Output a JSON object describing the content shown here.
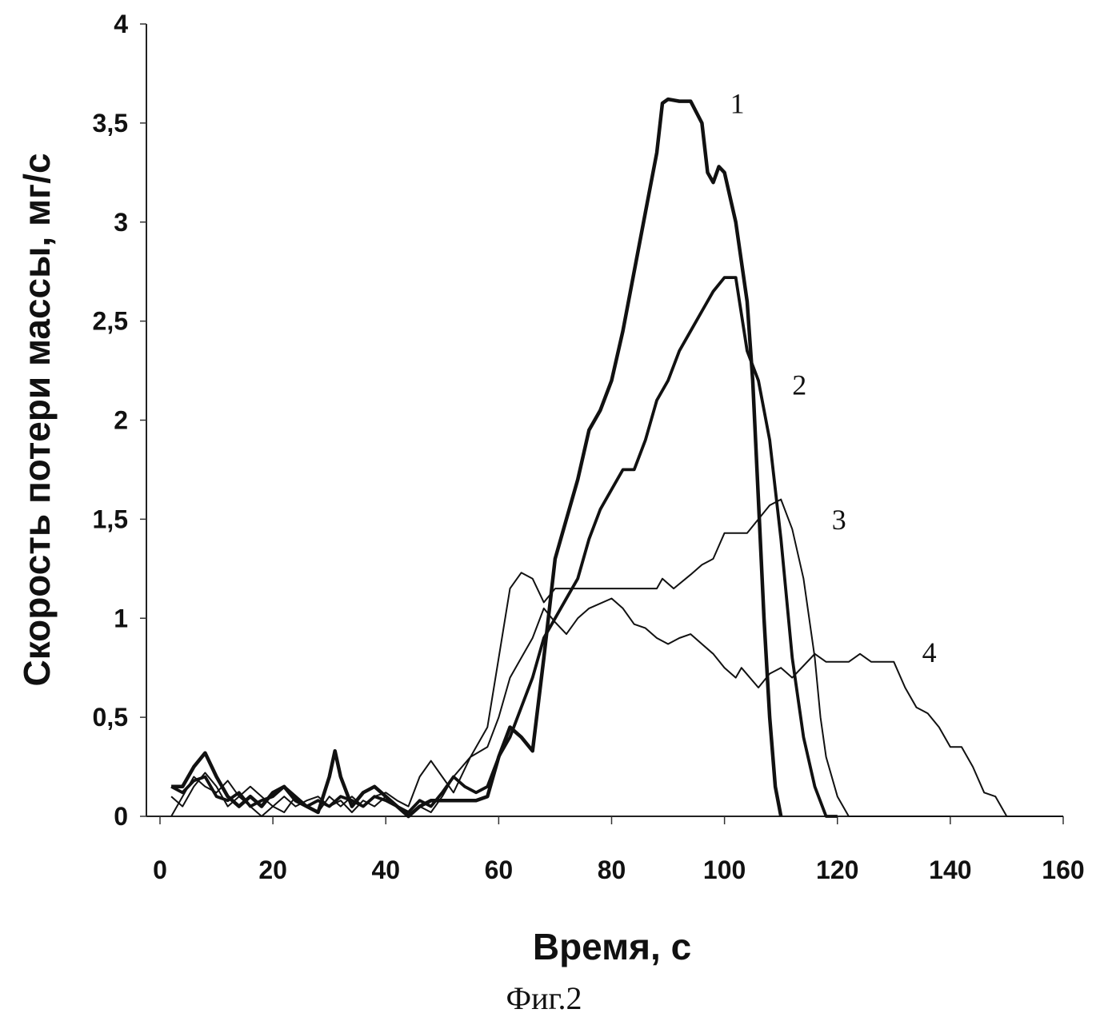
{
  "chart_data": {
    "type": "line",
    "title": "",
    "caption": "Фиг.2",
    "xlabel": "Время, с",
    "ylabel": "Скорость потери массы, мг/с",
    "xlim": [
      0,
      160
    ],
    "ylim": [
      0,
      4
    ],
    "xticks": [
      "0",
      "20",
      "40",
      "60",
      "80",
      "100",
      "120",
      "140",
      "160"
    ],
    "yticks": [
      "0",
      "0,5",
      "1",
      "1,5",
      "2",
      "2,5",
      "3",
      "3,5",
      "4"
    ],
    "grid": false,
    "legend": "inline curve numbers",
    "series": [
      {
        "name": "1",
        "x": [
          2,
          4,
          6,
          8,
          10,
          12,
          14,
          16,
          18,
          20,
          22,
          24,
          26,
          28,
          30,
          31,
          32,
          34,
          36,
          38,
          40,
          42,
          44,
          46,
          48,
          50,
          52,
          54,
          56,
          58,
          60,
          62,
          64,
          66,
          68,
          70,
          72,
          74,
          76,
          78,
          80,
          82,
          84,
          86,
          88,
          89,
          90,
          92,
          94,
          96,
          97,
          98,
          99,
          100,
          102,
          104,
          105,
          106,
          107,
          108,
          109,
          110
        ],
        "y": [
          0.15,
          0.15,
          0.25,
          0.32,
          0.2,
          0.1,
          0.05,
          0.1,
          0.05,
          0.12,
          0.15,
          0.08,
          0.05,
          0.02,
          0.2,
          0.33,
          0.2,
          0.05,
          0.12,
          0.15,
          0.1,
          0.05,
          0.0,
          0.05,
          0.08,
          0.08,
          0.08,
          0.08,
          0.08,
          0.1,
          0.3,
          0.45,
          0.4,
          0.33,
          0.8,
          1.3,
          1.5,
          1.7,
          1.95,
          2.05,
          2.2,
          2.45,
          2.75,
          3.05,
          3.35,
          3.6,
          3.62,
          3.61,
          3.61,
          3.5,
          3.25,
          3.2,
          3.28,
          3.25,
          3.0,
          2.6,
          2.2,
          1.6,
          1.0,
          0.5,
          0.15,
          0
        ]
      },
      {
        "name": "2",
        "x": [
          2,
          4,
          6,
          8,
          10,
          12,
          14,
          16,
          18,
          20,
          22,
          24,
          26,
          28,
          30,
          32,
          34,
          36,
          38,
          40,
          42,
          44,
          46,
          48,
          50,
          52,
          54,
          56,
          58,
          60,
          62,
          64,
          66,
          68,
          70,
          72,
          74,
          76,
          78,
          80,
          82,
          84,
          86,
          88,
          90,
          92,
          94,
          96,
          98,
          100,
          102,
          104,
          106,
          108,
          110,
          112,
          114,
          116,
          118,
          120
        ],
        "y": [
          0.15,
          0.12,
          0.18,
          0.2,
          0.1,
          0.08,
          0.12,
          0.05,
          0.08,
          0.1,
          0.15,
          0.1,
          0.05,
          0.08,
          0.05,
          0.1,
          0.08,
          0.05,
          0.1,
          0.08,
          0.05,
          0.02,
          0.08,
          0.05,
          0.12,
          0.2,
          0.15,
          0.12,
          0.15,
          0.3,
          0.4,
          0.55,
          0.7,
          0.9,
          1.0,
          1.1,
          1.2,
          1.4,
          1.55,
          1.65,
          1.75,
          1.75,
          1.9,
          2.1,
          2.2,
          2.35,
          2.45,
          2.55,
          2.65,
          2.72,
          2.72,
          2.35,
          2.2,
          1.9,
          1.4,
          0.8,
          0.4,
          0.15,
          0,
          0
        ]
      },
      {
        "name": "3",
        "x": [
          2,
          4,
          6,
          8,
          10,
          12,
          14,
          16,
          18,
          20,
          22,
          24,
          26,
          28,
          30,
          32,
          34,
          36,
          38,
          40,
          42,
          44,
          46,
          48,
          50,
          52,
          55,
          58,
          60,
          62,
          64,
          66,
          68,
          70,
          76,
          80,
          88,
          89,
          91,
          94,
          96,
          98,
          100,
          104,
          106,
          108,
          110,
          112,
          114,
          116,
          117,
          118,
          120,
          122,
          140
        ],
        "y": [
          0.1,
          0.05,
          0.15,
          0.22,
          0.15,
          0.05,
          0.1,
          0.15,
          0.1,
          0.05,
          0.02,
          0.1,
          0.05,
          0.02,
          0.1,
          0.05,
          0.1,
          0.05,
          0.1,
          0.12,
          0.08,
          0.05,
          0.2,
          0.28,
          0.2,
          0.12,
          0.3,
          0.45,
          0.8,
          1.15,
          1.23,
          1.2,
          1.08,
          1.15,
          1.15,
          1.15,
          1.15,
          1.2,
          1.15,
          1.22,
          1.27,
          1.3,
          1.43,
          1.43,
          1.5,
          1.57,
          1.6,
          1.45,
          1.2,
          0.8,
          0.5,
          0.3,
          0.1,
          0,
          0
        ]
      },
      {
        "name": "4",
        "x": [
          2,
          4,
          6,
          8,
          10,
          12,
          14,
          16,
          18,
          20,
          22,
          24,
          26,
          28,
          30,
          32,
          34,
          36,
          38,
          40,
          42,
          44,
          46,
          48,
          50,
          52,
          55,
          58,
          60,
          62,
          64,
          66,
          68,
          70,
          72,
          74,
          76,
          80,
          82,
          84,
          86,
          88,
          90,
          92,
          94,
          96,
          98,
          100,
          102,
          103,
          106,
          108,
          110,
          112,
          116,
          118,
          122,
          124,
          126,
          130,
          132,
          134,
          136,
          138,
          140,
          142,
          144,
          146,
          148,
          150,
          160
        ],
        "y": [
          0.0,
          0.1,
          0.2,
          0.15,
          0.12,
          0.18,
          0.1,
          0.05,
          0.0,
          0.05,
          0.1,
          0.05,
          0.08,
          0.1,
          0.05,
          0.08,
          0.02,
          0.08,
          0.05,
          0.1,
          0.05,
          0.0,
          0.05,
          0.02,
          0.1,
          0.2,
          0.3,
          0.35,
          0.5,
          0.7,
          0.8,
          0.9,
          1.05,
          0.98,
          0.92,
          1.0,
          1.05,
          1.1,
          1.05,
          0.97,
          0.95,
          0.9,
          0.87,
          0.9,
          0.92,
          0.87,
          0.82,
          0.75,
          0.7,
          0.75,
          0.65,
          0.72,
          0.75,
          0.7,
          0.82,
          0.78,
          0.78,
          0.82,
          0.78,
          0.78,
          0.65,
          0.55,
          0.52,
          0.45,
          0.35,
          0.35,
          0.25,
          0.12,
          0.1,
          0,
          0
        ]
      }
    ],
    "series_label_positions": [
      {
        "x": 101,
        "y": 3.55
      },
      {
        "x": 112,
        "y": 2.13
      },
      {
        "x": 119,
        "y": 1.45
      },
      {
        "x": 135,
        "y": 0.78
      }
    ]
  }
}
